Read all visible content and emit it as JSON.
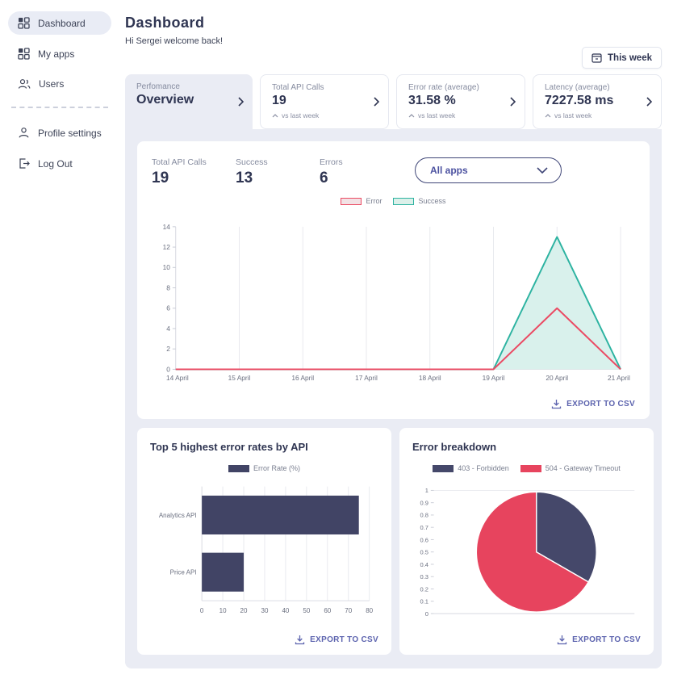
{
  "sidebar": {
    "items": [
      {
        "label": "Dashboard",
        "icon": "grid-icon",
        "active": true
      },
      {
        "label": "My apps",
        "icon": "grid-icon",
        "active": false
      },
      {
        "label": "Users",
        "icon": "users-icon",
        "active": false
      },
      {
        "label": "Profile settings",
        "icon": "person-icon",
        "active": false
      },
      {
        "label": "Log Out",
        "icon": "logout-icon",
        "active": false
      }
    ]
  },
  "header": {
    "title": "Dashboard",
    "subtitle": "Hi Sergei welcome back!",
    "period_button": "This week"
  },
  "stat_cards": [
    {
      "label": "Perfomance",
      "value": "Overview"
    },
    {
      "label": "Total API Calls",
      "value": "19",
      "sub": "vs last week"
    },
    {
      "label": "Error rate (average)",
      "value": "31.58 %",
      "sub": "vs last week"
    },
    {
      "label": "Latency (average)",
      "value": "7227.58 ms",
      "sub": "vs last week"
    }
  ],
  "overview_panel": {
    "stats": [
      {
        "label": "Total API Calls",
        "value": "19"
      },
      {
        "label": "Success",
        "value": "13"
      },
      {
        "label": "Errors",
        "value": "6"
      }
    ],
    "app_filter": "All apps",
    "export_label": "EXPORT TO CSV"
  },
  "panels": {
    "top_errors": {
      "title": "Top 5 highest error rates by API",
      "export_label": "EXPORT TO CSV"
    },
    "error_breakdown": {
      "title": "Error breakdown",
      "export_label": "EXPORT TO CSV"
    }
  },
  "chart_data": [
    {
      "name": "overview-line",
      "type": "line",
      "x": [
        "14 April",
        "15 April",
        "16 April",
        "17 April",
        "18 April",
        "19 April",
        "20 April",
        "21 April"
      ],
      "series": [
        {
          "name": "Error",
          "values": [
            0,
            0,
            0,
            0,
            0,
            0,
            6,
            0
          ],
          "color": "#eb4a63",
          "fill": "none",
          "legend_fill": "#f2e2e5"
        },
        {
          "name": "Success",
          "values": [
            0,
            0,
            0,
            0,
            0,
            0,
            13,
            0
          ],
          "color": "#2db3a1",
          "fill": "#d9f1ec",
          "legend_fill": "#dcf0ea"
        }
      ],
      "ylim": [
        0,
        14
      ],
      "ytick_step": 2,
      "legend_position": "top",
      "grid": "vertical"
    },
    {
      "name": "top-error-rates",
      "type": "bar",
      "orientation": "horizontal",
      "series_name": "Error Rate (%)",
      "categories": [
        "Analytics API",
        "Price API"
      ],
      "values": [
        75,
        20
      ],
      "color": "#414465",
      "xlim": [
        0,
        80
      ],
      "xtick_step": 10
    },
    {
      "name": "error-breakdown",
      "type": "pie",
      "labels": [
        "403 - Forbidden",
        "504 - Gateway Timeout"
      ],
      "values": [
        2,
        4
      ],
      "colors": [
        "#45486a",
        "#e7445e"
      ],
      "axis_ticks": [
        "1",
        "0.9",
        "0.8",
        "0.7",
        "0.6",
        "0.5",
        "0.4",
        "0.3",
        "0.2",
        "0.1",
        "0"
      ],
      "axis_range": [
        0,
        1
      ]
    }
  ]
}
